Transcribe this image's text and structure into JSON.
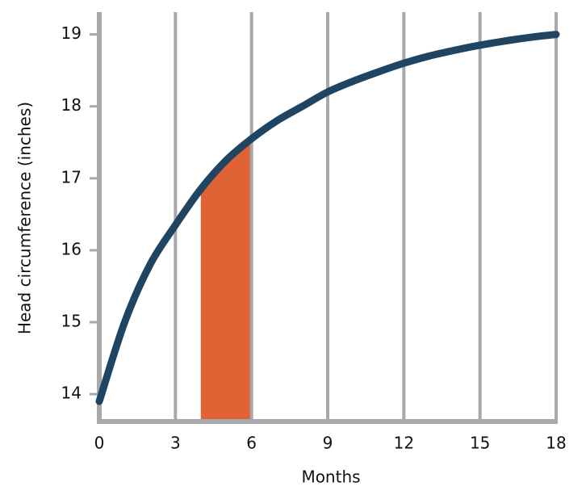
{
  "chart_data": {
    "type": "line",
    "x_label": "Months",
    "y_label": "Head circumference (inches)",
    "x": [
      0,
      1,
      2,
      3,
      4,
      5,
      6,
      7,
      8,
      9,
      10,
      11,
      12,
      13,
      14,
      15,
      16,
      17,
      18
    ],
    "series": [
      {
        "color": "#1f4563",
        "values": [
          13.9,
          15.0,
          15.8,
          16.35,
          16.85,
          17.25,
          17.55,
          17.8,
          18.0,
          18.2,
          18.35,
          18.48,
          18.6,
          18.7,
          18.78,
          18.85,
          18.91,
          18.96,
          19.0
        ]
      }
    ],
    "highlight": {
      "x": [
        4,
        6
      ],
      "color": "#e06335"
    },
    "xlim": [
      0,
      18
    ],
    "xticks": [
      0,
      3,
      6,
      9,
      12,
      15,
      18
    ],
    "ylim": [
      13.62,
      19.31
    ],
    "yticks": [
      14,
      15,
      16,
      17,
      18,
      19
    ],
    "grid": "x"
  }
}
